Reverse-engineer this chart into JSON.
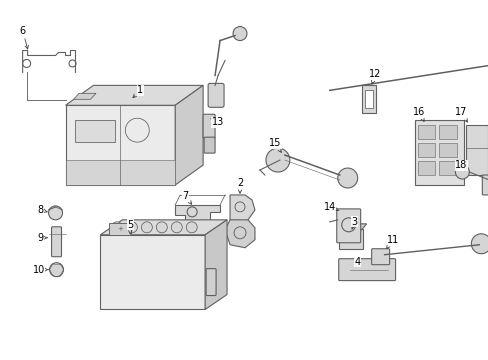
{
  "background_color": "#ffffff",
  "line_color": "#606060",
  "label_color": "#000000",
  "fig_width": 4.89,
  "fig_height": 3.6,
  "dpi": 100
}
